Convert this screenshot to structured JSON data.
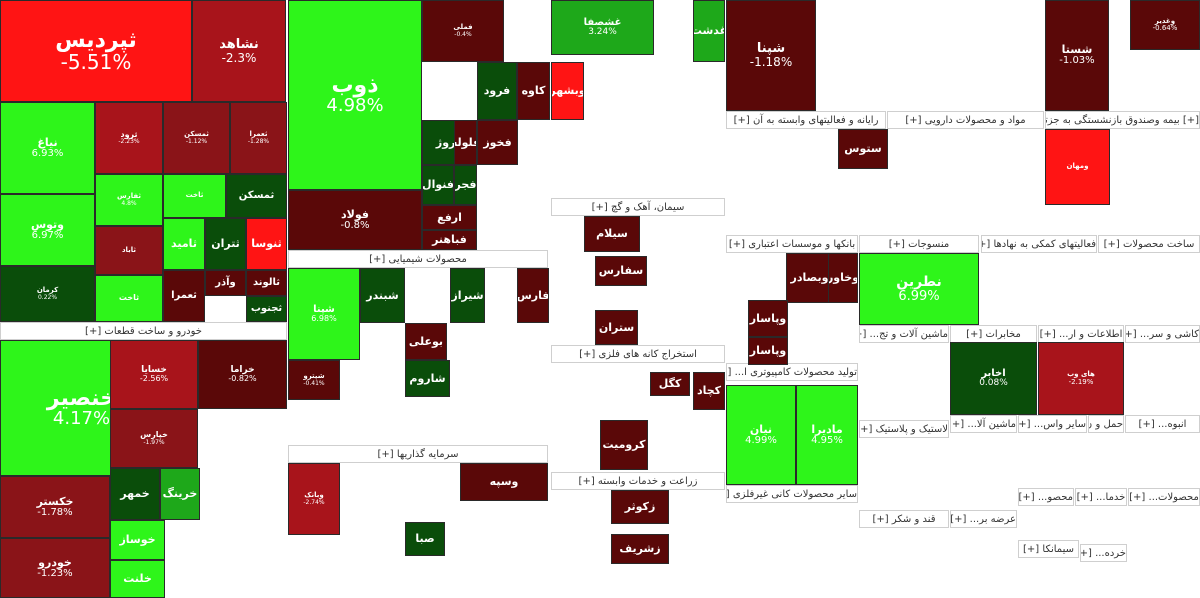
{
  "colors": {
    "up_strong": "#2ef51a",
    "up_mid": "#1ea81a",
    "up_dark": "#0a4d0a",
    "down_strong": "#ff1414",
    "down_mid": "#a8141b",
    "down_dark": "#5a0808"
  },
  "sectors": [
    {
      "id": "s_auto",
      "label": "خودرو و ساخت قطعات [+]"
    },
    {
      "id": "s_metal",
      "label": "محصولات شیمیایی [+]"
    },
    {
      "id": "s_invest",
      "label": "سرمایه گذاریها [+]"
    },
    {
      "id": "s_cement",
      "label": "سیمان، آهک و گچ [+]"
    },
    {
      "id": "s_mining",
      "label": "استخراج کانه های فلزی [+]"
    },
    {
      "id": "s_agri",
      "label": "زراعت و خدمات وابسته [+]"
    },
    {
      "id": "s_bank",
      "label": "بانکها و موسسات اعتباری [+]"
    },
    {
      "id": "s_comp",
      "label": "تولید محصولات کامپیوتری ا... [+]"
    },
    {
      "id": "s_nonmetal",
      "label": "سایر محصولات کانی غیرفلزی [+]"
    },
    {
      "id": "s_computer",
      "label": "رایانه و فعالیتهای وابسته به آن [+]"
    },
    {
      "id": "s_pharma",
      "label": "مواد و محصولات دارویی [+]"
    },
    {
      "id": "s_fund",
      "label": "[+] بیمه وصندوق بازنشستگی به جزتام"
    },
    {
      "id": "s_textile",
      "label": "منسوجات [+]"
    },
    {
      "id": "s_credit",
      "label": "فعالیتهای کمکی به نهادها [+]"
    },
    {
      "id": "s_build",
      "label": "ساخت محصولات [+]"
    },
    {
      "id": "s_machine",
      "label": "ماشین آلات و تج... [+]"
    },
    {
      "id": "s_telecom",
      "label": "مخابرات [+]"
    },
    {
      "id": "s_info",
      "label": "اطلاعات و ار... [+]"
    },
    {
      "id": "s_tile",
      "label": "کاشی و سر... [+]"
    },
    {
      "id": "s_plastic",
      "label": "لاستیک و پلاستیک [+]"
    },
    {
      "id": "s_machine2",
      "label": "ماشین آلا... [+]"
    },
    {
      "id": "s_other",
      "label": "سایر واس... [+]"
    },
    {
      "id": "s_transport",
      "label": "حمل و ن... [+]"
    },
    {
      "id": "s_asset",
      "label": "انبوه... [+]"
    },
    {
      "id": "s_sugar",
      "label": "قند و شکر [+]"
    },
    {
      "id": "s_supply",
      "label": "عرضه بر... [+]"
    },
    {
      "id": "s_misc",
      "label": "محصو... [+]"
    },
    {
      "id": "s_retail",
      "label": "خدما... [+]"
    },
    {
      "id": "s_prod",
      "label": "محصولات... [+]"
    },
    {
      "id": "s_pina",
      "label": "سیمانکا [+]"
    },
    {
      "id": "s_khorde",
      "label": "خرده... [+]"
    }
  ],
  "tiles": [
    {
      "sym": "ثپردیس",
      "pct": "-5.51%",
      "c": "#ff1414"
    },
    {
      "sym": "نشاهد",
      "pct": "-2.3%",
      "c": "#a8141b"
    },
    {
      "sym": "نیاغ",
      "pct": "6.93%",
      "c": "#2ef51a"
    },
    {
      "sym": "ثرود",
      "pct": "-2.23%",
      "c": "#a8141b"
    },
    {
      "sym": "ثمسکن",
      "pct": "-1.12%",
      "c": "#8a1418"
    },
    {
      "sym": "ثعمرا",
      "pct": "-1.28%",
      "c": "#8a1418"
    },
    {
      "sym": "وتوس",
      "pct": "6.97%",
      "c": "#2ef51a"
    },
    {
      "sym": "ثفارس",
      "pct": "4.8%",
      "c": "#2ef51a"
    },
    {
      "sym": "ثاخت",
      "pct": "",
      "c": "#2ef51a"
    },
    {
      "sym": "ثمسکن",
      "pct": "",
      "c": "#0a4d0a"
    },
    {
      "sym": "ثامید",
      "pct": "",
      "c": "#2ef51a"
    },
    {
      "sym": "ثتران",
      "pct": "",
      "c": "#0a4d0a"
    },
    {
      "sym": "ثنوسا",
      "pct": "",
      "c": "#ff1414"
    },
    {
      "sym": "کرمان",
      "pct": "0.22%",
      "c": "#0a4d0a"
    },
    {
      "sym": "ثاباد",
      "pct": "",
      "c": "#8a1418"
    },
    {
      "sym": "ثعمرا",
      "pct": "",
      "c": "#5a0808"
    },
    {
      "sym": "وآذر",
      "pct": "",
      "c": "#5a0808"
    },
    {
      "sym": "ثالوند",
      "pct": "",
      "c": "#5a0808"
    },
    {
      "sym": "ثاخت",
      "pct": "",
      "c": "#2ef51a"
    },
    {
      "sym": "ثجنوب",
      "pct": "",
      "c": "#0a4d0a"
    },
    {
      "sym": "ذوب",
      "pct": "4.98%",
      "c": "#2ef51a"
    },
    {
      "sym": "فملی",
      "pct": "-0.4%",
      "c": "#5a0808"
    },
    {
      "sym": "کاوه",
      "pct": "",
      "c": "#5a0808"
    },
    {
      "sym": "فرود",
      "pct": "",
      "c": "#0a4d0a"
    },
    {
      "sym": "فخوز",
      "pct": "",
      "c": "#5a0808"
    },
    {
      "sym": "فروژ",
      "pct": "",
      "c": "#0a4d0a"
    },
    {
      "sym": "فلوله",
      "pct": "",
      "c": "#5a0808"
    },
    {
      "sym": "فولاد",
      "pct": "-0.8%",
      "c": "#5a0808"
    },
    {
      "sym": "فنوال",
      "pct": "",
      "c": "#0a4d0a"
    },
    {
      "sym": "فجر",
      "pct": "",
      "c": "#0a4d0a"
    },
    {
      "sym": "ارفع",
      "pct": "",
      "c": "#5a0808"
    },
    {
      "sym": "فباهنر",
      "pct": "",
      "c": "#5a0808"
    },
    {
      "sym": "خنصیر",
      "pct": "4.17%",
      "c": "#2ef51a"
    },
    {
      "sym": "خسایا",
      "pct": "-2.56%",
      "c": "#a8141b"
    },
    {
      "sym": "خراما",
      "pct": "-0.82%",
      "c": "#5a0808"
    },
    {
      "sym": "خپارس",
      "pct": "-1.97%",
      "c": "#8a1418"
    },
    {
      "sym": "خکستر",
      "pct": "-1.78%",
      "c": "#8a1418"
    },
    {
      "sym": "خودرو",
      "pct": "-1.23%",
      "c": "#8a1418"
    },
    {
      "sym": "خمهر",
      "pct": "",
      "c": "#0a4d0a"
    },
    {
      "sym": "خرینگ",
      "pct": "",
      "c": "#1ea81a"
    },
    {
      "sym": "خوساز",
      "pct": "",
      "c": "#2ef51a"
    },
    {
      "sym": "خلنت",
      "pct": "",
      "c": "#2ef51a"
    },
    {
      "sym": "شپنا",
      "pct": "6.98%",
      "c": "#2ef51a"
    },
    {
      "sym": "شبندر",
      "pct": "",
      "c": "#0a4d0a"
    },
    {
      "sym": "شیراز",
      "pct": "",
      "c": "#0a4d0a"
    },
    {
      "sym": "فارس",
      "pct": "",
      "c": "#5a0808"
    },
    {
      "sym": "شپترو",
      "pct": "-0.41%",
      "c": "#5a0808"
    },
    {
      "sym": "بوعلی",
      "pct": "",
      "c": "#5a0808"
    },
    {
      "sym": "شاروم",
      "pct": "",
      "c": "#0a4d0a"
    },
    {
      "sym": "وبشهر",
      "pct": "",
      "c": "#ff1414"
    },
    {
      "sym": "وسپه",
      "pct": "",
      "c": "#5a0808"
    },
    {
      "sym": "صبا",
      "pct": "",
      "c": "#0a4d0a"
    },
    {
      "sym": "وبانک",
      "pct": "-2.74%",
      "c": "#a8141b"
    },
    {
      "sym": "سیلام",
      "pct": "",
      "c": "#5a0808"
    },
    {
      "sym": "سفارس",
      "pct": "",
      "c": "#5a0808"
    },
    {
      "sym": "ستران",
      "pct": "",
      "c": "#5a0808"
    },
    {
      "sym": "غشصفا",
      "pct": "3.24%",
      "c": "#1ea81a"
    },
    {
      "sym": "غدشت",
      "pct": "",
      "c": "#1ea81a"
    },
    {
      "sym": "کگل",
      "pct": "",
      "c": "#5a0808"
    },
    {
      "sym": "کچاد",
      "pct": "",
      "c": "#5a0808"
    },
    {
      "sym": "کروميت",
      "pct": "",
      "c": "#5a0808"
    },
    {
      "sym": "زکوثر",
      "pct": "",
      "c": "#5a0808"
    },
    {
      "sym": "زشریف",
      "pct": "",
      "c": "#5a0808"
    },
    {
      "sym": "شپنا",
      "pct": "-1.18%",
      "c": "#5a0808"
    },
    {
      "sym": "وبصادر",
      "pct": "",
      "c": "#5a0808"
    },
    {
      "sym": "وپاسار",
      "pct": "",
      "c": "#5a0808"
    },
    {
      "sym": "وخاور",
      "pct": "",
      "c": "#5a0808"
    },
    {
      "sym": "نیان",
      "pct": "4.99%",
      "c": "#2ef51a"
    },
    {
      "sym": "مادیرا",
      "pct": "4.95%",
      "c": "#2ef51a"
    },
    {
      "sym": "نطرین",
      "pct": "6.99%",
      "c": "#2ef51a"
    },
    {
      "sym": "شستا",
      "pct": "-1.03%",
      "c": "#5a0808"
    },
    {
      "sym": "وغدیر",
      "pct": "-0.64%",
      "c": "#5a0808"
    },
    {
      "sym": "اخابر",
      "pct": "0.08%",
      "c": "#0a4d0a"
    },
    {
      "sym": "های وب",
      "pct": "-2.19%",
      "c": "#a8141b"
    },
    {
      "sym": "وپاسار",
      "pct": "",
      "c": "#5a0808"
    },
    {
      "sym": "ومهان",
      "pct": "",
      "c": "#ff1414"
    },
    {
      "sym": "ستوس",
      "pct": "",
      "c": "#5a0808"
    }
  ]
}
